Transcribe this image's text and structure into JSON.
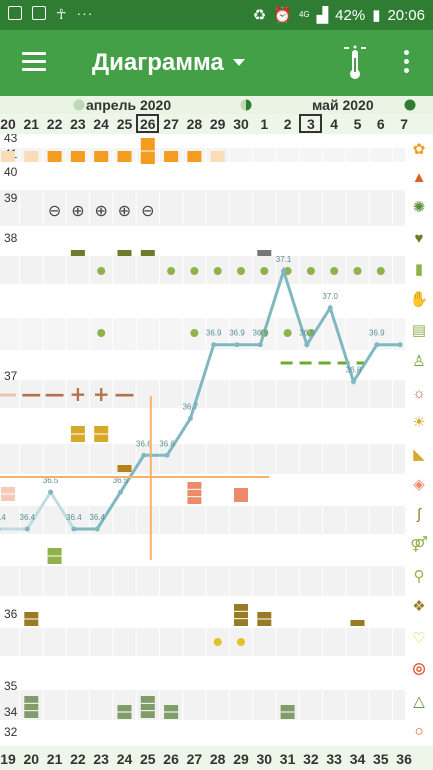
{
  "status": {
    "time": "20:06",
    "battery": "42%",
    "network": "4G",
    "dots": "···",
    "icons": [
      "image-icon",
      "cast-icon",
      "ok-icon",
      "recycle-icon",
      "alarm-icon",
      "signal-icon",
      "battery-icon"
    ]
  },
  "appbar": {
    "title": "Диаграмма",
    "menu_icon": "hamburger-menu-icon",
    "action_icon": "thermometer-icon",
    "overflow_icon": "overflow-menu-icon"
  },
  "months": [
    {
      "label": "апрель 2020",
      "moon": "new-moon-icon"
    },
    {
      "label": "май 2020",
      "moon": "full-moon-icon"
    }
  ],
  "half_moon_icon": "half-moon-icon",
  "new_moon_icon_end": "new-moon-icon",
  "dates": [
    "20",
    "21",
    "22",
    "23",
    "24",
    "25",
    "26",
    "27",
    "28",
    "29",
    "30",
    "1",
    "2",
    "3",
    "4",
    "5",
    "6",
    "7"
  ],
  "today_date": "26",
  "today_date_may": "3",
  "cycle_days": [
    "19",
    "20",
    "21",
    "22",
    "23",
    "24",
    "25",
    "26",
    "27",
    "28",
    "29",
    "30",
    "31",
    "32",
    "33",
    "34",
    "35",
    "36"
  ],
  "temp_axis": [
    "43",
    "41",
    "40",
    "39",
    "38",
    "37",
    "36",
    "35",
    "34",
    "32"
  ],
  "colors": {
    "line": "#7fb8bf",
    "orange": "#f39c1f",
    "olive": "#6e7a2e",
    "green": "#8fb34a",
    "salmon": "#ec8b6a",
    "gold": "#d7a92b",
    "brown": "#b5811d",
    "accent_line": "#f4b26b"
  },
  "chart_data": {
    "type": "line",
    "x": [
      "20",
      "21",
      "22",
      "23",
      "24",
      "25",
      "26",
      "27",
      "28",
      "29",
      "30",
      "1",
      "2",
      "3",
      "4",
      "5",
      "6",
      "7"
    ],
    "series": [
      {
        "values": [
          36.4,
          36.4,
          36.5,
          36.4,
          36.4,
          36.5,
          36.6,
          36.6,
          36.7,
          36.9,
          36.9,
          36.9,
          37.1,
          36.9,
          37.0,
          36.8,
          36.9,
          36.9
        ]
      }
    ],
    "value_labels": [
      "36.4",
      "36.4",
      "36.5",
      "36.4",
      "36.4",
      "36.5",
      "36.6",
      "36.6",
      "36.7",
      "36.9",
      "36.9",
      "36.9",
      "37.1",
      "36.9",
      "37.0",
      "36.8",
      "36.9",
      ""
    ],
    "ylim": [
      32,
      43
    ],
    "grid": "horizontal-bands"
  },
  "signs_row": [
    "−",
    "⊖",
    "⊕",
    "⊕",
    "⊕",
    "⊖"
  ],
  "crossing_marks": [
    "—",
    "—",
    "+",
    "+",
    "—"
  ],
  "right_icons": [
    "flower-icon",
    "drop-icon",
    "splash-icon",
    "heart-icon",
    "pill-icon",
    "hand-icon",
    "document-icon",
    "person-icon",
    "sun-dashed-icon",
    "sun-icon",
    "stomach-icon",
    "droplet-dashed-icon",
    "ear-icon",
    "couple-icon",
    "search-person-icon",
    "diamond-icon",
    "heart-pulse-icon",
    "target-icon",
    "triangle-icon",
    "ring-icon",
    "recycle-icon"
  ]
}
